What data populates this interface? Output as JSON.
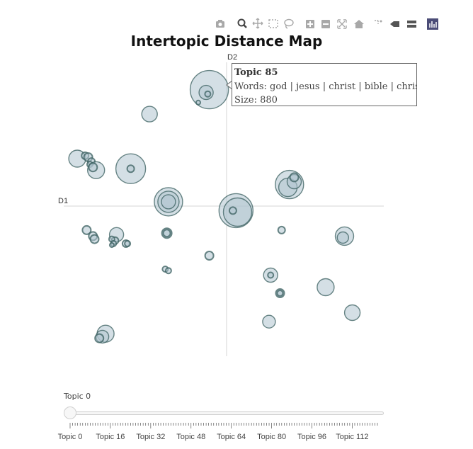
{
  "toolbar": {
    "icons": [
      "camera-icon",
      "zoom-icon",
      "pan-icon",
      "box-select-icon",
      "lasso-select-icon",
      "zoom-in-icon",
      "zoom-out-icon",
      "autoscale-icon",
      "reset-axes-icon",
      "spike-lines-icon",
      "hover-closest-icon",
      "hover-compare-icon",
      "plotly-logo-icon"
    ]
  },
  "chart_data": {
    "type": "scatter",
    "title": "Intertopic Distance Map",
    "xlabel": "D1",
    "ylabel": "D2",
    "xlim": [
      -1,
      1
    ],
    "ylim": [
      -1,
      1
    ],
    "grid": false,
    "colors": {
      "fill": "#b0c4cf",
      "stroke": "#3a5f5f",
      "axis": "#d6d6d6"
    },
    "points": [
      {
        "x": -0.11,
        "y": 0.81,
        "r": 27
      },
      {
        "x": -0.13,
        "y": 0.79,
        "r": 10
      },
      {
        "x": -0.12,
        "y": 0.78,
        "r": 4
      },
      {
        "x": -0.18,
        "y": 0.72,
        "r": 3
      },
      {
        "x": -0.49,
        "y": 0.64,
        "r": 11
      },
      {
        "x": -0.95,
        "y": 0.33,
        "r": 12
      },
      {
        "x": -0.9,
        "y": 0.35,
        "r": 5
      },
      {
        "x": -0.88,
        "y": 0.34,
        "r": 6
      },
      {
        "x": -0.86,
        "y": 0.31,
        "r": 5
      },
      {
        "x": -0.87,
        "y": 0.29,
        "r": 4
      },
      {
        "x": -0.83,
        "y": 0.25,
        "r": 12
      },
      {
        "x": -0.85,
        "y": 0.27,
        "r": 6
      },
      {
        "x": -0.61,
        "y": 0.26,
        "r": 21
      },
      {
        "x": -0.61,
        "y": 0.26,
        "r": 5
      },
      {
        "x": -0.37,
        "y": 0.03,
        "r": 20
      },
      {
        "x": -0.37,
        "y": 0.03,
        "r": 15
      },
      {
        "x": -0.37,
        "y": 0.03,
        "r": 10
      },
      {
        "x": 0.06,
        "y": -0.03,
        "r": 24
      },
      {
        "x": 0.07,
        "y": -0.04,
        "r": 20
      },
      {
        "x": 0.04,
        "y": -0.03,
        "r": 5
      },
      {
        "x": 0.4,
        "y": 0.15,
        "r": 20
      },
      {
        "x": 0.39,
        "y": 0.13,
        "r": 13
      },
      {
        "x": 0.43,
        "y": 0.17,
        "r": 10
      },
      {
        "x": 0.43,
        "y": 0.2,
        "r": 6
      },
      {
        "x": 0.35,
        "y": -0.16,
        "r": 5
      },
      {
        "x": 0.75,
        "y": -0.2,
        "r": 13
      },
      {
        "x": 0.74,
        "y": -0.21,
        "r": 8
      },
      {
        "x": -0.89,
        "y": -0.16,
        "r": 6
      },
      {
        "x": -0.85,
        "y": -0.2,
        "r": 6
      },
      {
        "x": -0.84,
        "y": -0.22,
        "r": 6
      },
      {
        "x": -0.7,
        "y": -0.19,
        "r": 10
      },
      {
        "x": -0.71,
        "y": -0.23,
        "r": 5
      },
      {
        "x": -0.73,
        "y": -0.22,
        "r": 4
      },
      {
        "x": -0.72,
        "y": -0.25,
        "r": 4
      },
      {
        "x": -0.73,
        "y": -0.26,
        "r": 3
      },
      {
        "x": -0.64,
        "y": -0.25,
        "r": 5
      },
      {
        "x": -0.63,
        "y": -0.25,
        "r": 4
      },
      {
        "x": -0.38,
        "y": -0.18,
        "r": 7
      },
      {
        "x": -0.38,
        "y": -0.18,
        "r": 5
      },
      {
        "x": -0.11,
        "y": -0.33,
        "r": 6
      },
      {
        "x": -0.39,
        "y": -0.42,
        "r": 4
      },
      {
        "x": -0.37,
        "y": -0.43,
        "r": 4
      },
      {
        "x": 0.28,
        "y": -0.46,
        "r": 10
      },
      {
        "x": 0.28,
        "y": -0.46,
        "r": 4
      },
      {
        "x": 0.34,
        "y": -0.58,
        "r": 6
      },
      {
        "x": 0.34,
        "y": -0.58,
        "r": 4
      },
      {
        "x": 0.63,
        "y": -0.54,
        "r": 12
      },
      {
        "x": 0.8,
        "y": -0.71,
        "r": 11
      },
      {
        "x": 0.27,
        "y": -0.77,
        "r": 9
      },
      {
        "x": -0.77,
        "y": -0.85,
        "r": 12
      },
      {
        "x": -0.79,
        "y": -0.87,
        "r": 9
      },
      {
        "x": -0.81,
        "y": -0.88,
        "r": 6
      }
    ]
  },
  "tooltip": {
    "title": "Topic 85",
    "words": "Words: god | jesus | christ | bible | christian",
    "size": "Size: 880"
  },
  "slider": {
    "current_label": "Topic 0",
    "tick_labels": [
      "Topic 0",
      "Topic 16",
      "Topic 32",
      "Topic 48",
      "Topic 64",
      "Topic 80",
      "Topic 96",
      "Topic 112"
    ],
    "max_topic": 122,
    "value": 0
  }
}
